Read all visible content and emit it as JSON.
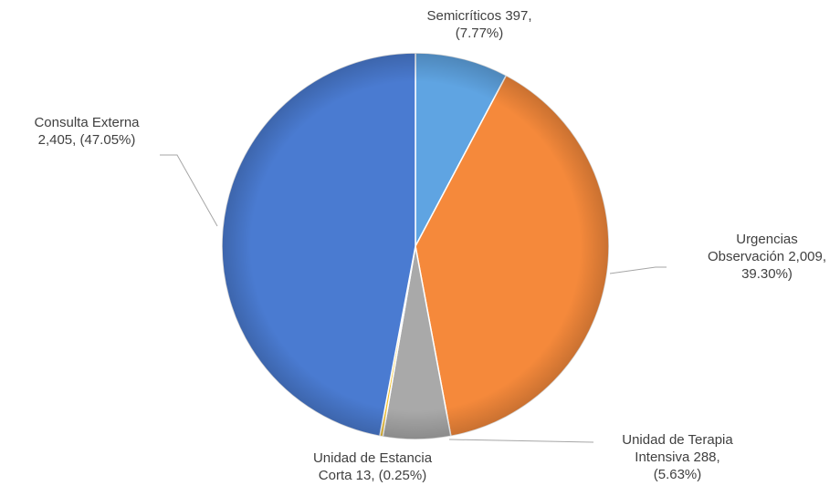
{
  "chart_data": {
    "type": "pie",
    "categories": [
      "Semicríticos",
      "Urgencias Observación",
      "Unidad de Terapia Intensiva",
      "Unidad de Estancia Corta",
      "Consulta Externa"
    ],
    "values": [
      397,
      2009,
      288,
      13,
      2405
    ],
    "value_labels": [
      "397,",
      "2,009,",
      "288,",
      "13,",
      "2,405,"
    ],
    "percents": [
      7.77,
      39.3,
      5.63,
      0.25,
      47.05
    ],
    "percent_labels": [
      "(7.77%)",
      "39.30%)",
      "(5.63%)",
      "(0.25%)",
      "(47.05%)"
    ],
    "colors": [
      "#5fa4e2",
      "#f5893b",
      "#a9a9a9",
      "#f2c230",
      "#4a7bd1"
    ]
  }
}
